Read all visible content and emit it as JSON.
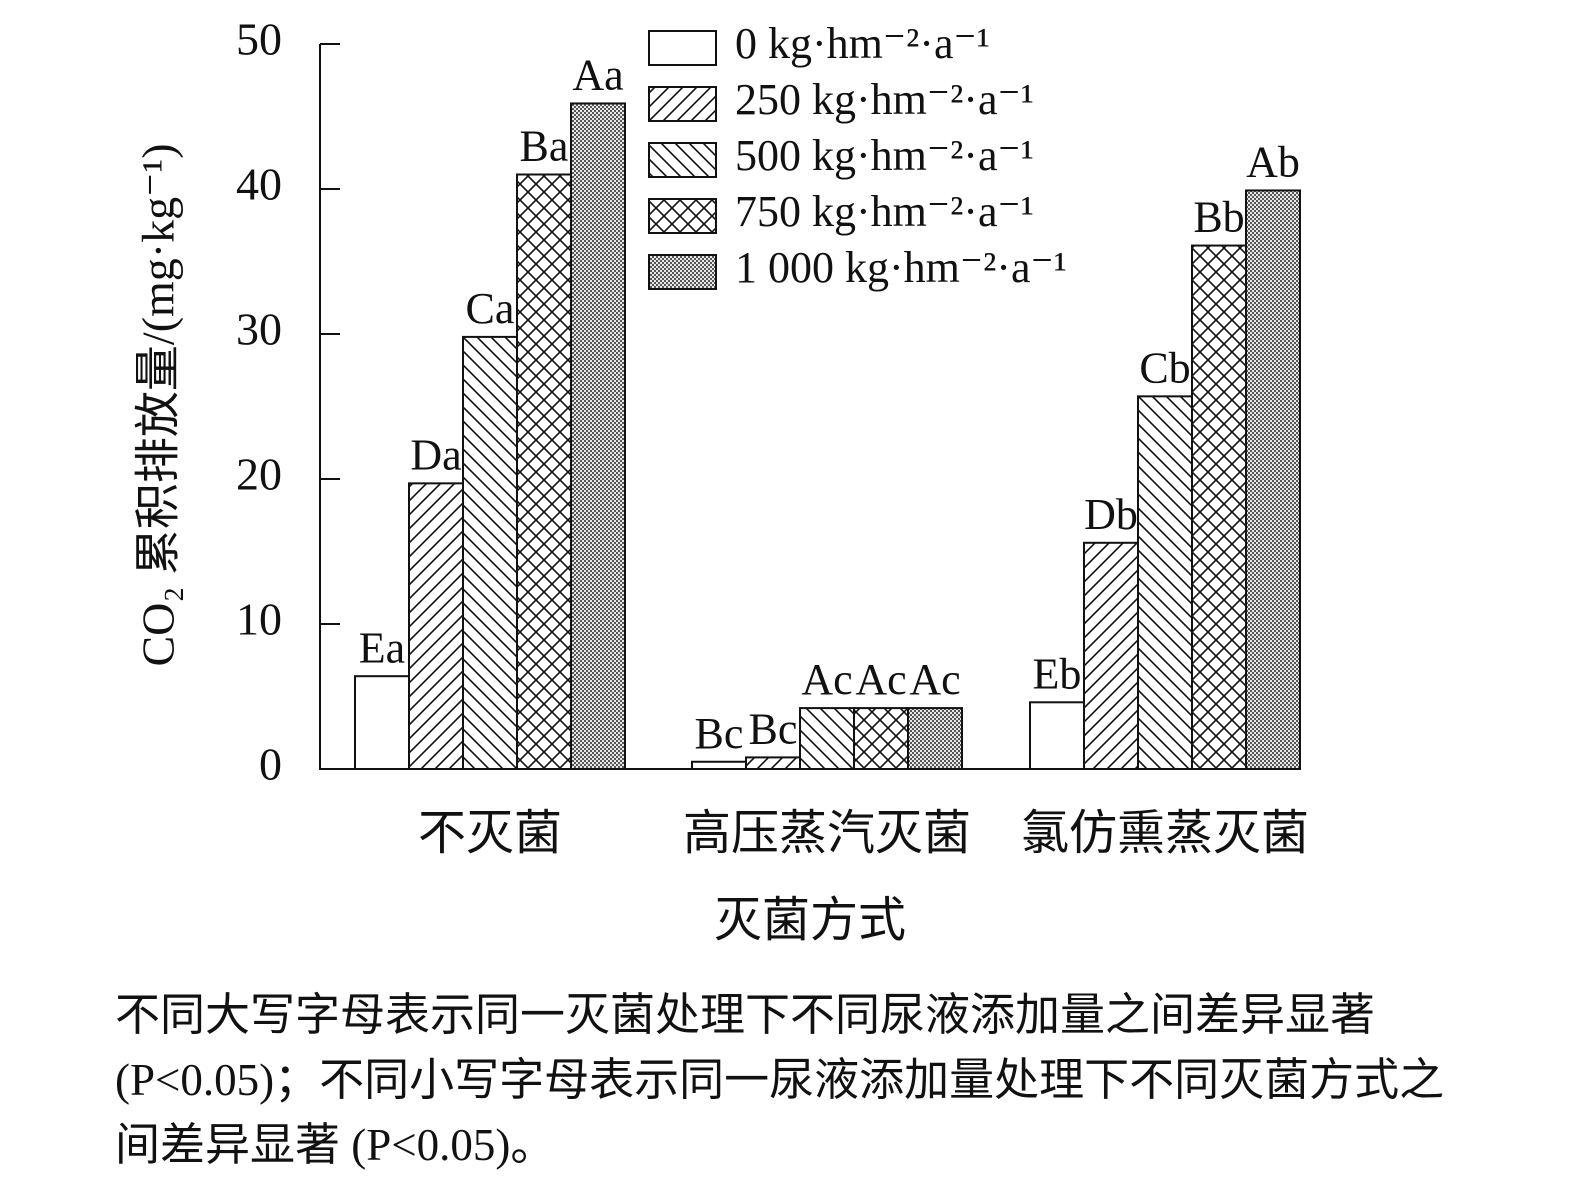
{
  "chart_data": {
    "type": "bar",
    "y_label": "CO₂ 累积排放量/(mg·kg⁻¹)",
    "x_label": "灭菌方式",
    "categories": [
      "不灭菌",
      "高压蒸汽灭菌",
      "氯仿熏蒸灭菌"
    ],
    "series": [
      {
        "name": "0 kg·hm⁻²·a⁻¹",
        "pattern": "none",
        "values": [
          6.4,
          0.5,
          4.6
        ],
        "letters": [
          "Ea",
          "Bc",
          "Eb"
        ]
      },
      {
        "name": "250 kg·hm⁻²·a⁻¹",
        "pattern": "hatch-right",
        "values": [
          19.7,
          0.8,
          15.6
        ],
        "letters": [
          "Da",
          "Bc",
          "Db"
        ]
      },
      {
        "name": "500 kg·hm⁻²·a⁻¹",
        "pattern": "hatch-left",
        "values": [
          29.8,
          4.2,
          25.7
        ],
        "letters": [
          "Ca",
          "Ac",
          "Cb"
        ]
      },
      {
        "name": "750 kg·hm⁻²·a⁻¹",
        "pattern": "cross",
        "values": [
          41.0,
          4.2,
          36.1
        ],
        "letters": [
          "Ba",
          "Ac",
          "Bb"
        ]
      },
      {
        "name": "1 000 kg·hm⁻²·a⁻¹",
        "pattern": "dots",
        "values": [
          45.9,
          4.2,
          39.9
        ],
        "letters": [
          "Aa",
          "Ac",
          "Ab"
        ]
      }
    ],
    "ylim": [
      0,
      50
    ],
    "yticks": [
      0,
      10,
      20,
      30,
      40,
      50
    ],
    "caption": "不同大写字母表示同一灭菌处理下不同尿液添加量之间差异显著 (P<0.05)；不同小写字母表示同一尿液添加量处理下不同灭菌方式之间差异显著 (P<0.05)。"
  }
}
